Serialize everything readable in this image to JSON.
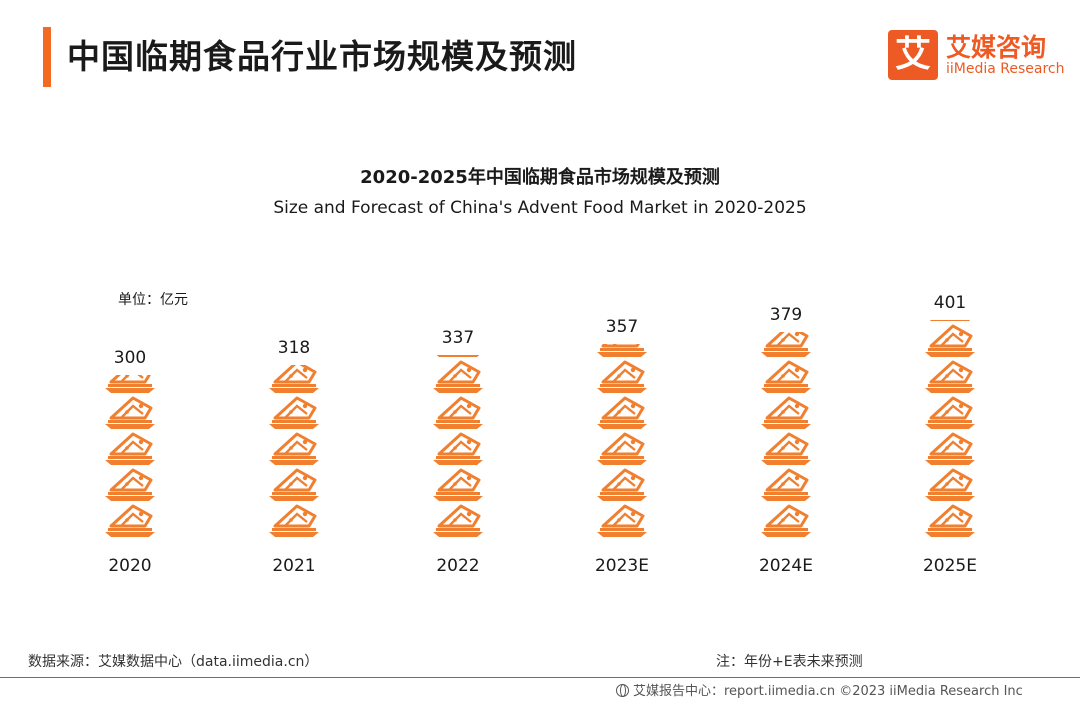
{
  "header": {
    "title": "中国临期食品行业市场规模及预测",
    "logo_mark": "艾",
    "logo_cn": "艾媒咨询",
    "logo_en": "iiMedia Research",
    "accent_color": "#f26b21"
  },
  "chart_data": {
    "type": "bar",
    "title": "2020-2025年中国临期食品市场规模及预测",
    "subtitle": "Size and Forecast of China's Advent Food Market in 2020-2025",
    "unit_label": "单位：亿元",
    "categories": [
      "2020",
      "2021",
      "2022",
      "2023E",
      "2024E",
      "2025E"
    ],
    "values": [
      300,
      318,
      337,
      357,
      379,
      401
    ],
    "ylim": [
      0,
      401
    ],
    "grid": false,
    "legend": "none",
    "bar_style": "stacked food-plate pictogram",
    "bar_color": "#f07f2f"
  },
  "footer": {
    "source": "数据来源：艾媒数据中心（data.iimedia.cn）",
    "note": "注：年份+E表未来预测",
    "copyright": "艾媒报告中心：report.iimedia.cn  ©2023  iiMedia Research  Inc"
  }
}
